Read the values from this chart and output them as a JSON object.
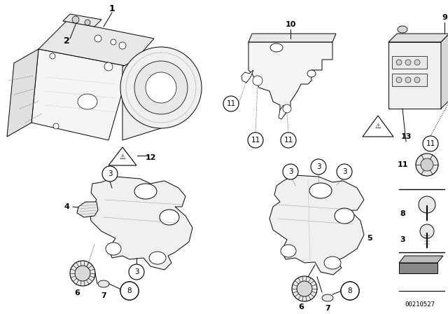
{
  "background_color": "#ffffff",
  "image_number": "00210527",
  "line_color": "#000000",
  "dashed_color": "#555555",
  "fill_light": "#f0f0f0",
  "fill_mid": "#e0e0e0",
  "fill_dark": "#c8c8c8"
}
